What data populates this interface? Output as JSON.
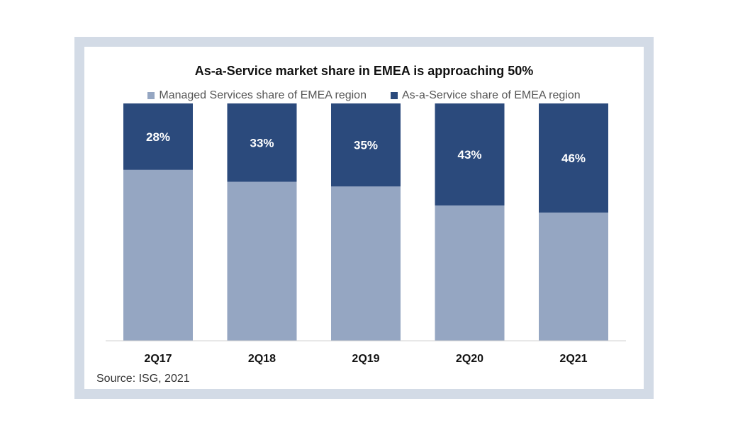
{
  "chart_data": {
    "type": "bar",
    "stacked": true,
    "title": "As-a-Service market share in EMEA is approaching 50%",
    "categories": [
      "2Q17",
      "2Q18",
      "2Q19",
      "2Q20",
      "2Q21"
    ],
    "series": [
      {
        "name": "Managed Services share of EMEA region",
        "values": [
          72,
          67,
          65,
          57,
          54
        ],
        "color": "#95a6c2"
      },
      {
        "name": "As-a-Service share of EMEA region",
        "values": [
          28,
          33,
          35,
          43,
          46
        ],
        "color": "#2b4a7c"
      }
    ],
    "data_labels": [
      "28%",
      "33%",
      "35%",
      "43%",
      "46%"
    ],
    "ylim": [
      0,
      100
    ],
    "grid": false,
    "legend_position": "top-center",
    "source": "Source: ISG, 2021"
  }
}
